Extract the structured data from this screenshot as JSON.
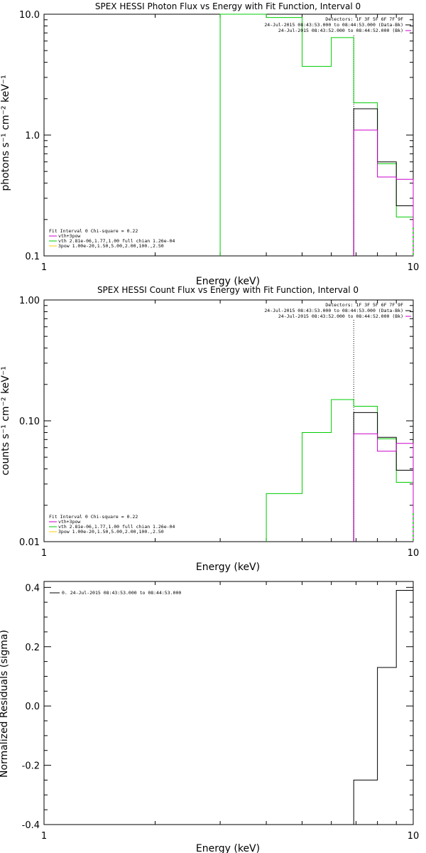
{
  "colors": {
    "data": "#000000",
    "vth_plus_3pow": "#cc00cc",
    "vth": "#00cc00",
    "three_pow": "#ffcc00",
    "axis": "#000000"
  },
  "chart_data": [
    {
      "type": "line",
      "title": "SPEX HESSI Photon Flux vs Energy with Fit Function, Interval 0",
      "xlabel": "Energy (keV)",
      "ylabel": "photons s⁻¹ cm⁻² keV⁻¹",
      "xscale": "log",
      "yscale": "log",
      "xlim": [
        1,
        10
      ],
      "ylim": [
        0.1,
        10
      ],
      "xticks": [
        "1",
        "10"
      ],
      "yticks": [
        "0.1",
        "1.0",
        "10.0"
      ],
      "legend_top_right": [
        "Detectors: 1F 3F 5F 6F 7F 9F",
        "24-Jul-2015 08:43:53.000 to 08:44:53.000 (Data-Bk)",
        "24-Jul-2015 08:43:52.000 to 08:44:52.000 (Bk)"
      ],
      "legend_bottom_left": [
        "Fit Interval 0   Chi-square = 0.22",
        "vth+3pow",
        "vth 2.81e-06,1.77,1.00  full chian 1.26e-04",
        "3pow 1.00e-20,1.50,5.00,2.00,100.,2.50"
      ],
      "fit_start_keV": 6.9,
      "series": [
        {
          "name": "vth",
          "color": "#00cc00",
          "edges": [
            3.0,
            4.0,
            5.0,
            6.0,
            6.9,
            8.0,
            9.0,
            10.0
          ],
          "values": [
            10.0,
            9.4,
            3.7,
            6.4,
            1.85,
            0.58,
            0.21
          ]
        },
        {
          "color": "#000000",
          "edges": [
            6.9,
            8.0,
            9.0,
            10.0
          ],
          "values": [
            1.65,
            0.6,
            0.26
          ]
        },
        {
          "name": "vth+3pow",
          "color": "#cc00cc",
          "edges": [
            6.9,
            8.0,
            9.0,
            10.0
          ],
          "values": [
            1.1,
            0.45,
            0.43
          ]
        }
      ]
    },
    {
      "type": "line",
      "title": "SPEX HESSI Count Flux vs Energy with Fit Function, Interval 0",
      "xlabel": "Energy (keV)",
      "ylabel": "counts s⁻¹ cm⁻² keV⁻¹",
      "xscale": "log",
      "yscale": "log",
      "xlim": [
        1,
        10
      ],
      "ylim": [
        0.01,
        1
      ],
      "xticks": [
        "1",
        "10"
      ],
      "yticks": [
        "0.01",
        "0.10",
        "1.00"
      ],
      "legend_top_right": [
        "Detectors: 1F 3F 5F 6F 7F 9F",
        "24-Jul-2015 08:43:53.000 to 08:44:53.000 (Data-Bk)",
        "24-Jul-2015 08:43:52.000 to 08:44:52.000 (Bk)"
      ],
      "legend_bottom_left": [
        "Fit Interval 0   Chi-square = 0.22",
        "vth+3pow",
        "vth 2.81e-06,1.77,1.00  full chian 1.26e-04",
        "3pow 1.00e-20,1.50,5.00,2.00,100.,2.50"
      ],
      "fit_start_keV": 6.9,
      "series": [
        {
          "name": "vth",
          "color": "#00cc00",
          "edges": [
            4.0,
            5.0,
            6.0,
            6.9,
            8.0,
            9.0,
            10.0
          ],
          "values": [
            0.025,
            0.08,
            0.15,
            0.132,
            0.071,
            0.031
          ]
        },
        {
          "color": "#000000",
          "edges": [
            6.9,
            8.0,
            9.0,
            10.0
          ],
          "values": [
            0.117,
            0.073,
            0.039
          ]
        },
        {
          "name": "vth+3pow",
          "color": "#cc00cc",
          "edges": [
            6.9,
            8.0,
            9.0,
            10.0
          ],
          "values": [
            0.078,
            0.056,
            0.065
          ]
        }
      ]
    },
    {
      "type": "line",
      "title": "",
      "xlabel": "Energy (keV)",
      "ylabel": "Normalized Residuals (sigma)",
      "xscale": "log",
      "yscale": "linear",
      "xlim": [
        1,
        10
      ],
      "ylim": [
        -0.4,
        0.42
      ],
      "xticks": [
        "1",
        "10"
      ],
      "yticks": [
        "-0.4",
        "-0.2",
        "0.0",
        "0.2",
        "0.4"
      ],
      "legend_top_left": "0. 24-Jul-2015 08:43:53.000 to 08:44:53.000",
      "series": [
        {
          "color": "#000000",
          "edges": [
            6.9,
            8.0,
            9.0,
            10.0
          ],
          "values": [
            -0.25,
            0.13,
            0.39
          ]
        }
      ]
    }
  ]
}
